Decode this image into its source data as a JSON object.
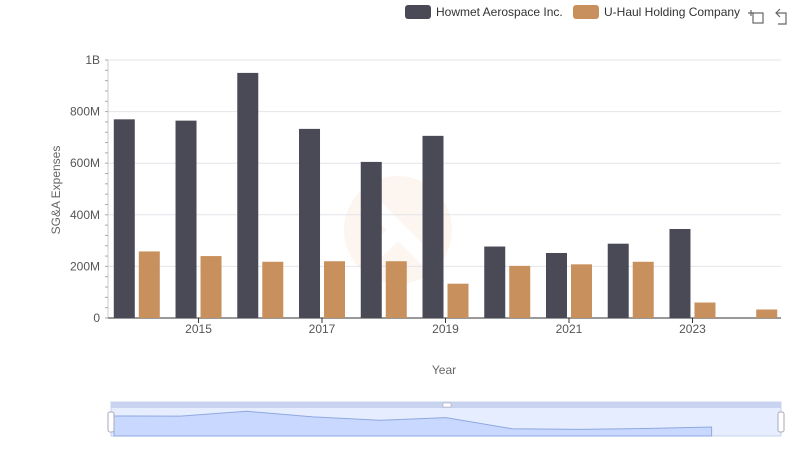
{
  "toolbar": {
    "zoom_icon": "data-zoom-icon",
    "restore_icon": "restore-icon"
  },
  "chart_data": {
    "type": "bar",
    "title": "",
    "xlabel": "Year",
    "ylabel": "SG&A Expenses",
    "categories": [
      "2014",
      "2015",
      "2016",
      "2017",
      "2018",
      "2019",
      "2020",
      "2021",
      "2022",
      "2023",
      "2024"
    ],
    "x_tick_labels": [
      "2015",
      "2017",
      "2019",
      "2021",
      "2023"
    ],
    "y_ticks": [
      {
        "value": 0,
        "label": "0"
      },
      {
        "value": 200000000,
        "label": "200M"
      },
      {
        "value": 400000000,
        "label": "400M"
      },
      {
        "value": 600000000,
        "label": "600M"
      },
      {
        "value": 800000000,
        "label": "800M"
      },
      {
        "value": 1000000000,
        "label": "1B"
      }
    ],
    "ylim": [
      0,
      1000000000
    ],
    "grid": true,
    "legend_position": "top-right",
    "series": [
      {
        "name": "Howmet Aerospace Inc.",
        "color": "#4a4a56",
        "values": [
          770000000,
          765000000,
          950000000,
          733000000,
          605000000,
          706000000,
          277000000,
          252000000,
          288000000,
          345000000,
          null
        ]
      },
      {
        "name": "U-Haul Holding Company",
        "color": "#c8905c",
        "values": [
          258000000,
          240000000,
          218000000,
          220000000,
          220000000,
          133000000,
          202000000,
          208000000,
          218000000,
          60000000,
          33000000
        ]
      }
    ]
  }
}
